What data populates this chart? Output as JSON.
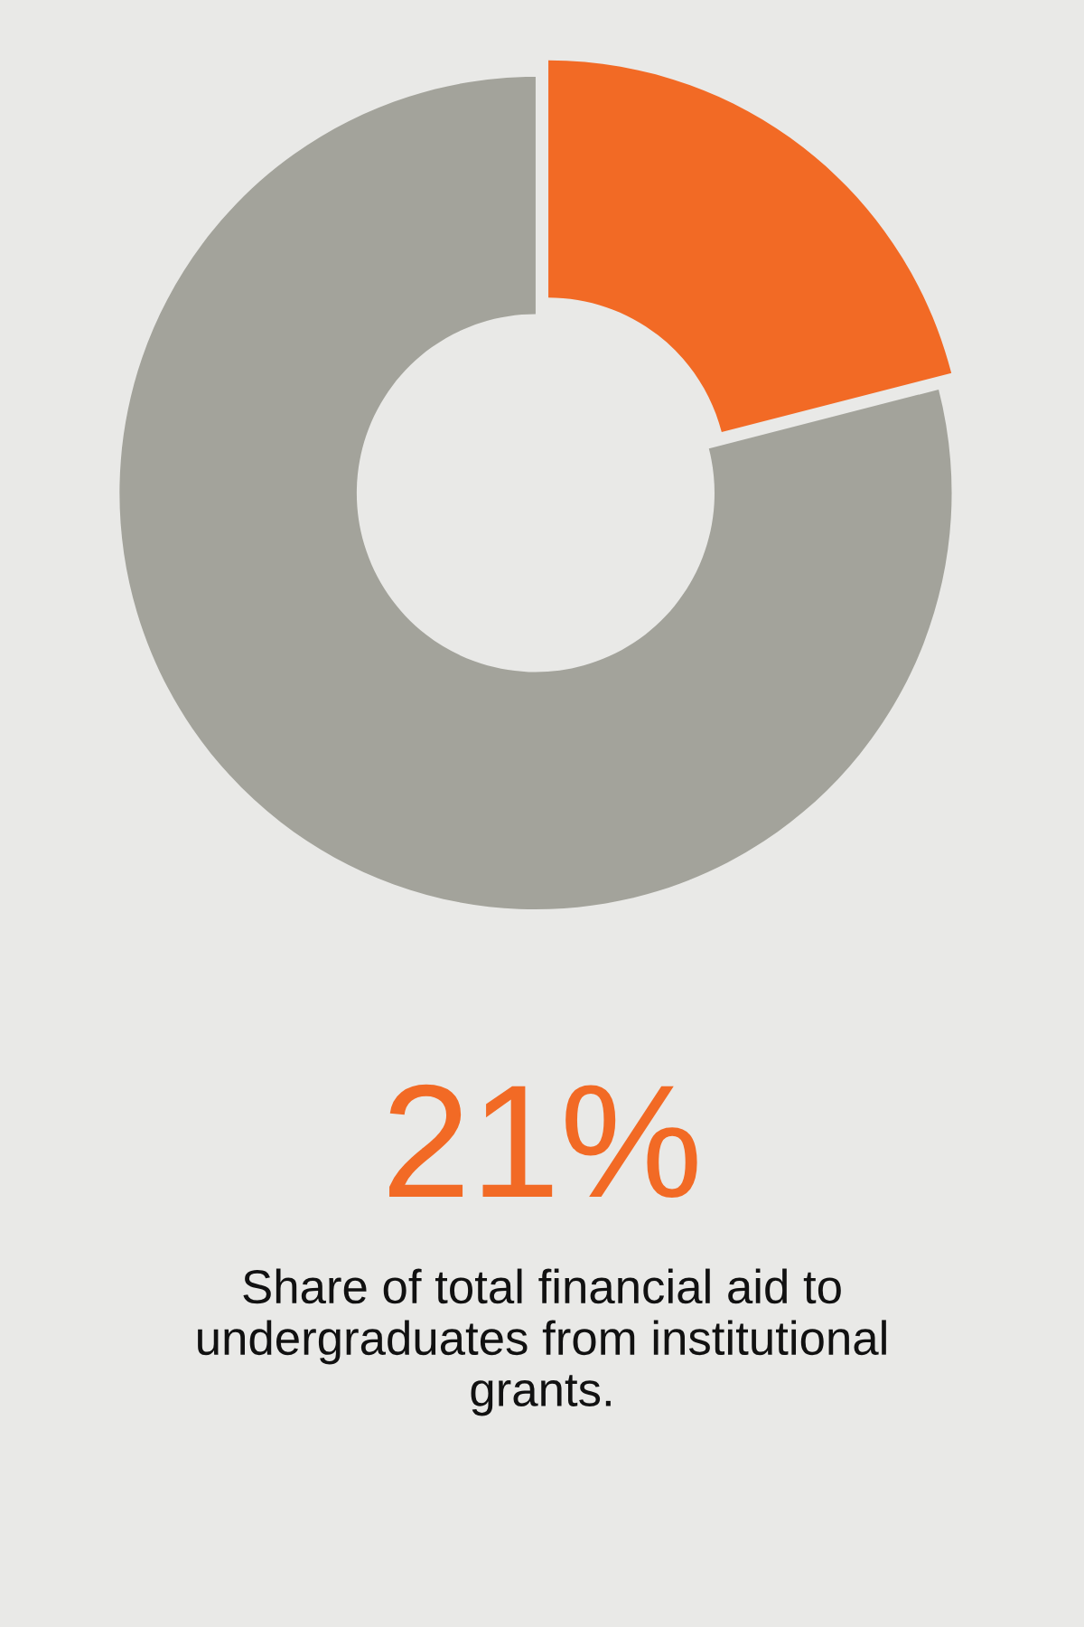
{
  "chart_data": {
    "type": "donut",
    "categories": [
      null,
      null
    ],
    "values": [
      21,
      79
    ],
    "colors": [
      "#f26a25",
      "#a3a39b"
    ],
    "annotations": [
      "21%",
      "Share of total financial aid to undergraduates from institutional grants."
    ]
  }
}
